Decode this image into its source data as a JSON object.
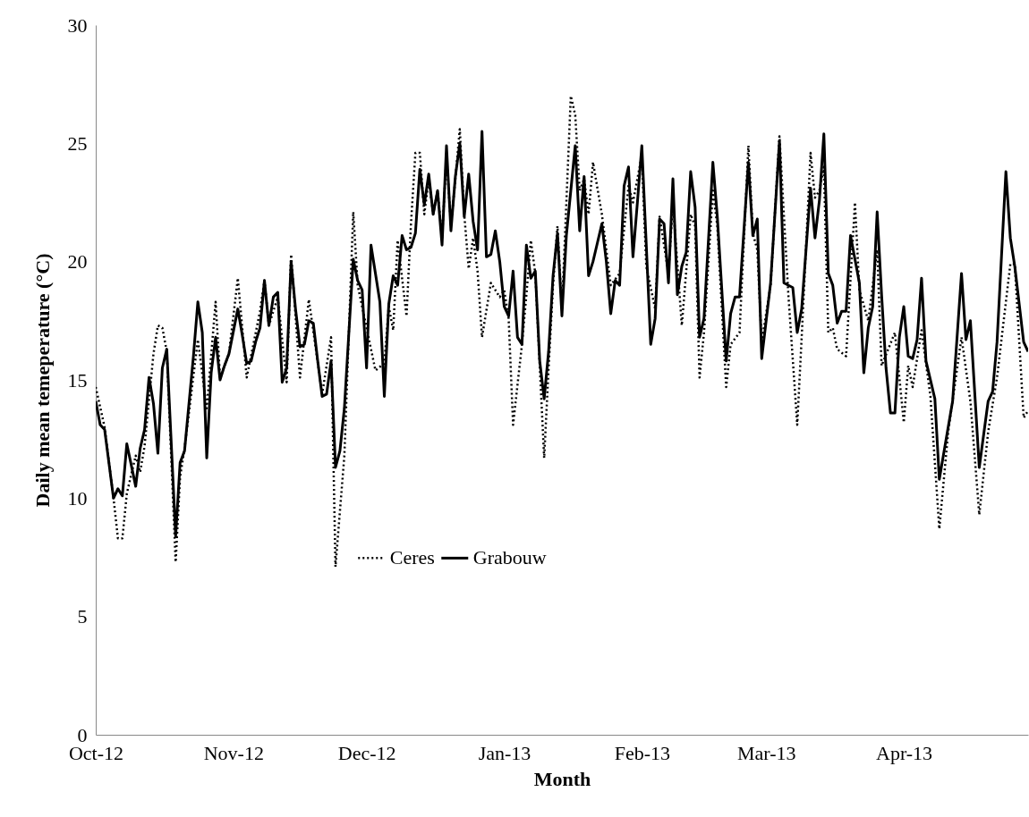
{
  "chart_data": {
    "type": "line",
    "xlabel": "Month",
    "ylabel": "Daily mean temeperature (°C)",
    "ylim": [
      0,
      30
    ],
    "yticks": [
      0,
      5,
      10,
      15,
      20,
      25,
      30
    ],
    "xlim": [
      "2012-10-01",
      "2013-04-29"
    ],
    "xticks": [
      {
        "value": "2012-10-01",
        "label": "Oct-12"
      },
      {
        "value": "2012-11-01",
        "label": "Nov-12"
      },
      {
        "value": "2012-12-01",
        "label": "Dec-12"
      },
      {
        "value": "2013-01-01",
        "label": "Jan-13"
      },
      {
        "value": "2013-02-01",
        "label": "Feb-13"
      },
      {
        "value": "2013-03-01",
        "label": "Mar-13"
      },
      {
        "value": "2013-04-01",
        "label": "Apr-13"
      }
    ],
    "grid": false,
    "legend": "bottom",
    "marker": "none",
    "series": [
      {
        "name": "Ceres",
        "color": "#000000",
        "line_style": "dotted",
        "x": [
          "2012-10-01",
          "2012-10-03",
          "2012-10-05",
          "2012-10-06",
          "2012-10-07",
          "2012-10-08",
          "2012-10-10",
          "2012-10-11",
          "2012-10-12",
          "2012-10-14",
          "2012-10-15",
          "2012-10-16",
          "2012-10-17",
          "2012-10-19",
          "2012-10-20",
          "2012-10-21",
          "2012-10-24",
          "2012-10-26",
          "2012-10-28",
          "2012-10-29",
          "2012-10-31",
          "2012-11-02",
          "2012-11-04",
          "2012-11-07",
          "2012-11-08",
          "2012-11-09",
          "2012-11-11",
          "2012-11-13",
          "2012-11-14",
          "2012-11-16",
          "2012-11-18",
          "2012-11-21",
          "2012-11-23",
          "2012-11-24",
          "2012-11-26",
          "2012-11-28",
          "2012-11-29",
          "2012-12-03",
          "2012-12-05",
          "2012-12-06",
          "2012-12-07",
          "2012-12-08",
          "2012-12-10",
          "2012-12-11",
          "2012-12-12",
          "2012-12-13",
          "2012-12-14",
          "2012-12-15",
          "2012-12-16",
          "2012-12-17",
          "2012-12-18",
          "2012-12-19",
          "2012-12-20",
          "2012-12-21",
          "2012-12-22",
          "2012-12-23",
          "2012-12-24",
          "2012-12-25",
          "2012-12-26",
          "2012-12-27",
          "2012-12-29",
          "2012-12-31",
          "2013-01-01",
          "2013-01-02",
          "2013-01-03",
          "2013-01-05",
          "2013-01-06",
          "2013-01-07",
          "2013-01-08",
          "2013-01-10",
          "2013-01-11",
          "2013-01-12",
          "2013-01-13",
          "2013-01-14",
          "2013-01-16",
          "2013-01-17",
          "2013-01-18",
          "2013-01-19",
          "2013-01-20",
          "2013-01-21",
          "2013-01-23",
          "2013-01-25",
          "2013-01-27",
          "2013-01-29",
          "2013-01-30",
          "2013-02-01",
          "2013-02-02",
          "2013-02-04",
          "2013-02-05",
          "2013-02-07",
          "2013-02-08",
          "2013-02-10",
          "2013-02-11",
          "2013-02-12",
          "2013-02-13",
          "2013-02-14",
          "2013-02-15",
          "2013-02-17",
          "2013-02-18",
          "2013-02-20",
          "2013-02-21",
          "2013-02-23",
          "2013-02-25",
          "2013-02-26",
          "2013-02-27",
          "2013-02-28",
          "2013-03-02",
          "2013-03-04",
          "2013-03-06",
          "2013-03-08",
          "2013-03-09",
          "2013-03-11",
          "2013-03-12",
          "2013-03-13",
          "2013-03-14",
          "2013-03-15",
          "2013-03-16",
          "2013-03-17",
          "2013-03-19",
          "2013-03-21",
          "2013-03-22",
          "2013-03-24",
          "2013-03-26",
          "2013-03-27",
          "2013-03-30",
          "2013-04-01",
          "2013-04-02",
          "2013-04-03",
          "2013-04-05",
          "2013-04-07",
          "2013-04-09",
          "2013-04-11",
          "2013-04-14",
          "2013-04-16",
          "2013-04-18",
          "2013-04-20",
          "2013-04-22",
          "2013-04-25",
          "2013-04-26",
          "2013-04-28",
          "2013-04-29"
        ],
        "values": [
          14.7,
          13.0,
          10.0,
          8.3,
          8.3,
          10.2,
          11.8,
          11.1,
          12.2,
          16.1,
          17.3,
          17.2,
          16.2,
          7.3,
          10.9,
          12.1,
          16.7,
          13.8,
          18.3,
          15.1,
          16.1,
          19.3,
          15.1,
          17.9,
          19.2,
          17.3,
          18.5,
          14.9,
          20.3,
          15.1,
          18.4,
          14.4,
          16.8,
          7.1,
          11.8,
          22.1,
          19.0,
          15.4,
          15.7,
          18.1,
          17.1,
          20.9,
          17.7,
          21.6,
          24.6,
          24.6,
          22.0,
          23.5,
          22.0,
          23.0,
          21.0,
          24.5,
          21.5,
          23.5,
          25.6,
          22.0,
          19.7,
          21.0,
          19.6,
          16.8,
          19.1,
          18.5,
          18.8,
          17.6,
          13.1,
          16.5,
          18.6,
          20.9,
          19.5,
          11.7,
          15.5,
          19.0,
          21.5,
          18.0,
          27.0,
          26.2,
          23.0,
          23.5,
          22.0,
          24.2,
          22.0,
          19.0,
          19.5,
          23.2,
          22.5,
          24.5,
          19.8,
          18.0,
          21.9,
          19.5,
          22.5,
          17.3,
          19.6,
          22.0,
          21.5,
          15.1,
          17.0,
          23.0,
          21.5,
          14.7,
          16.5,
          17.0,
          24.9,
          21.2,
          20.5,
          16.6,
          19.0,
          25.3,
          18.6,
          13.1,
          16.8,
          24.6,
          22.7,
          23.0,
          24.0,
          17.0,
          17.2,
          16.3,
          16.0,
          22.5,
          18.8,
          17.5,
          20.5,
          15.6,
          17.0,
          13.2,
          15.6,
          14.7,
          17.1,
          14.3,
          8.7,
          12.8,
          16.8,
          14.1,
          9.3,
          12.8,
          15.1,
          19.9,
          19.9,
          13.4,
          13.7
        ]
      },
      {
        "name": "Grabouw",
        "color": "#000000",
        "line_style": "solid",
        "x": [
          "2012-10-01",
          "2012-10-02",
          "2012-10-03",
          "2012-10-05",
          "2012-10-06",
          "2012-10-07",
          "2012-10-08",
          "2012-10-10",
          "2012-10-11",
          "2012-10-12",
          "2012-10-13",
          "2012-10-14",
          "2012-10-15",
          "2012-10-16",
          "2012-10-17",
          "2012-10-19",
          "2012-10-20",
          "2012-10-21",
          "2012-10-23",
          "2012-10-24",
          "2012-10-25",
          "2012-10-26",
          "2012-10-27",
          "2012-10-28",
          "2012-10-29",
          "2012-10-30",
          "2012-10-31",
          "2012-11-02",
          "2012-11-03",
          "2012-11-04",
          "2012-11-05",
          "2012-11-06",
          "2012-11-07",
          "2012-11-08",
          "2012-11-09",
          "2012-11-10",
          "2012-11-11",
          "2012-11-12",
          "2012-11-13",
          "2012-11-14",
          "2012-11-15",
          "2012-11-16",
          "2012-11-17",
          "2012-11-18",
          "2012-11-19",
          "2012-11-20",
          "2012-11-21",
          "2012-11-22",
          "2012-11-23",
          "2012-11-24",
          "2012-11-25",
          "2012-11-26",
          "2012-11-28",
          "2012-11-29",
          "2012-11-30",
          "2012-12-01",
          "2012-12-02",
          "2012-12-03",
          "2012-12-04",
          "2012-12-05",
          "2012-12-06",
          "2012-12-07",
          "2012-12-08",
          "2012-12-09",
          "2012-12-10",
          "2012-12-11",
          "2012-12-12",
          "2012-12-13",
          "2012-12-14",
          "2012-12-15",
          "2012-12-16",
          "2012-12-17",
          "2012-12-18",
          "2012-12-19",
          "2012-12-20",
          "2012-12-21",
          "2012-12-22",
          "2012-12-23",
          "2012-12-24",
          "2012-12-25",
          "2012-12-26",
          "2012-12-27",
          "2012-12-28",
          "2012-12-29",
          "2012-12-30",
          "2012-12-31",
          "2013-01-01",
          "2013-01-02",
          "2013-01-03",
          "2013-01-04",
          "2013-01-05",
          "2013-01-06",
          "2013-01-07",
          "2013-01-08",
          "2013-01-09",
          "2013-01-10",
          "2013-01-11",
          "2013-01-12",
          "2013-01-13",
          "2013-01-14",
          "2013-01-15",
          "2013-01-16",
          "2013-01-17",
          "2013-01-18",
          "2013-01-19",
          "2013-01-20",
          "2013-01-21",
          "2013-01-22",
          "2013-01-23",
          "2013-01-24",
          "2013-01-25",
          "2013-01-26",
          "2013-01-27",
          "2013-01-28",
          "2013-01-29",
          "2013-01-30",
          "2013-01-31",
          "2013-02-01",
          "2013-02-03",
          "2013-02-04",
          "2013-02-05",
          "2013-02-06",
          "2013-02-07",
          "2013-02-08",
          "2013-02-09",
          "2013-02-10",
          "2013-02-11",
          "2013-02-12",
          "2013-02-13",
          "2013-02-14",
          "2013-02-15",
          "2013-02-17",
          "2013-02-18",
          "2013-02-20",
          "2013-02-21",
          "2013-02-22",
          "2013-02-23",
          "2013-02-25",
          "2013-02-26",
          "2013-02-27",
          "2013-02-28",
          "2013-03-02",
          "2013-03-04",
          "2013-03-05",
          "2013-03-07",
          "2013-03-08",
          "2013-03-09",
          "2013-03-11",
          "2013-03-12",
          "2013-03-13",
          "2013-03-14",
          "2013-03-15",
          "2013-03-16",
          "2013-03-17",
          "2013-03-18",
          "2013-03-19",
          "2013-03-20",
          "2013-03-22",
          "2013-03-23",
          "2013-03-24",
          "2013-03-25",
          "2013-03-26",
          "2013-03-27",
          "2013-03-28",
          "2013-03-29",
          "2013-03-30",
          "2013-03-31",
          "2013-04-01",
          "2013-04-02",
          "2013-04-03",
          "2013-04-04",
          "2013-04-05",
          "2013-04-06",
          "2013-04-08",
          "2013-04-09",
          "2013-04-12",
          "2013-04-14",
          "2013-04-15",
          "2013-04-16",
          "2013-04-18",
          "2013-04-20",
          "2013-04-21",
          "2013-04-22",
          "2013-04-24",
          "2013-04-25",
          "2013-04-26",
          "2013-04-28",
          "2013-04-29"
        ],
        "values": [
          14.1,
          13.1,
          12.9,
          10.0,
          10.4,
          10.1,
          12.3,
          10.5,
          12.1,
          12.9,
          15.1,
          14.0,
          11.9,
          15.5,
          16.3,
          8.4,
          11.5,
          12.0,
          16.0,
          18.3,
          17.0,
          11.7,
          15.3,
          16.8,
          15.0,
          15.6,
          16.1,
          18.0,
          16.9,
          15.7,
          15.8,
          16.6,
          17.2,
          19.2,
          17.3,
          18.5,
          18.7,
          14.9,
          15.5,
          20.0,
          18.0,
          16.4,
          16.5,
          17.5,
          17.4,
          15.8,
          14.3,
          14.4,
          15.8,
          11.3,
          12.0,
          13.8,
          20.1,
          19.2,
          18.8,
          15.5,
          20.7,
          19.5,
          18.3,
          14.3,
          18.2,
          19.4,
          19.0,
          21.1,
          20.5,
          20.6,
          21.2,
          23.9,
          22.4,
          23.7,
          22.0,
          23.0,
          20.7,
          24.9,
          21.3,
          23.6,
          25.0,
          21.9,
          23.7,
          21.7,
          20.5,
          25.5,
          20.2,
          20.3,
          21.3,
          20.0,
          18.1,
          17.7,
          19.6,
          16.8,
          16.5,
          20.7,
          19.3,
          19.6,
          15.8,
          14.2,
          16.2,
          19.4,
          21.2,
          17.7,
          21.1,
          23.0,
          24.9,
          21.3,
          23.6,
          19.4,
          20.0,
          20.8,
          21.6,
          20.0,
          17.8,
          19.2,
          19.0,
          23.2,
          24.0,
          20.2,
          22.5,
          24.9,
          16.5,
          17.6,
          21.8,
          21.6,
          19.1,
          23.5,
          18.6,
          19.8,
          20.4,
          23.8,
          22.3,
          16.8,
          17.6,
          24.2,
          21.9,
          15.8,
          17.8,
          18.5,
          18.5,
          24.2,
          21.1,
          21.8,
          15.9,
          19.1,
          25.1,
          19.1,
          18.9,
          17.0,
          18.0,
          23.1,
          21.0,
          22.6,
          25.4,
          19.5,
          19.0,
          17.4,
          17.9,
          17.9,
          21.1,
          19.1,
          15.3,
          17.2,
          18.1,
          22.1,
          18.6,
          15.5,
          13.6,
          13.6,
          16.8,
          18.1,
          16.0,
          15.9,
          16.7,
          19.3,
          15.8,
          14.2,
          10.8,
          14.1,
          19.5,
          16.7,
          17.5,
          11.3,
          14.1,
          14.5,
          16.6,
          23.8,
          21.0,
          19.8,
          16.6,
          16.2
        ]
      }
    ]
  }
}
